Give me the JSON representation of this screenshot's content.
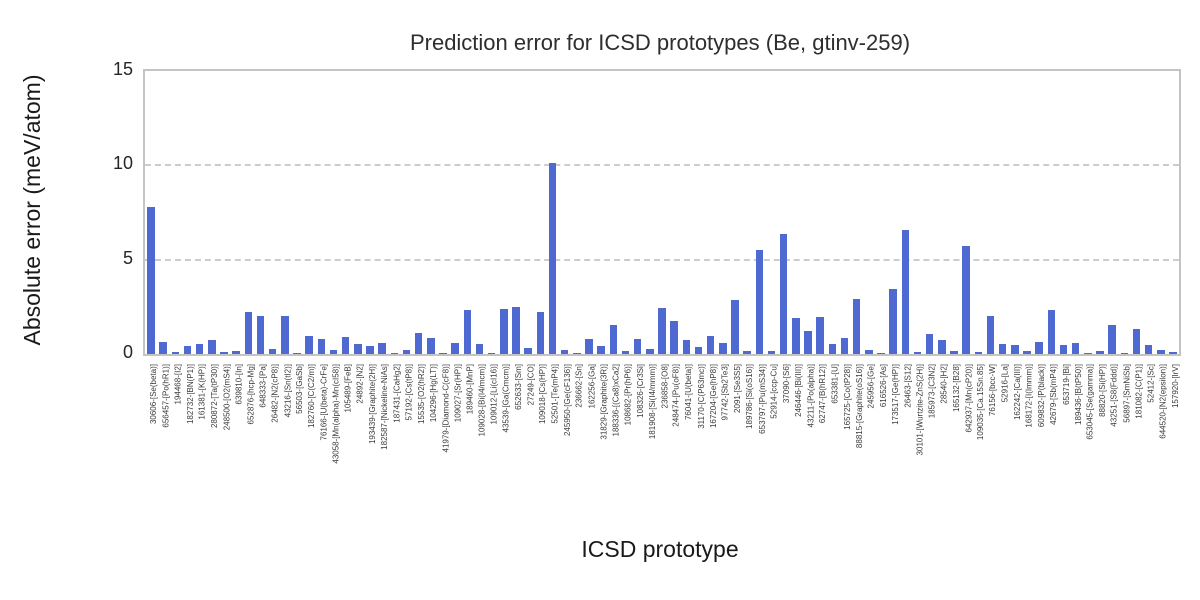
{
  "colors": {
    "bar": "#4e69d2",
    "grid": "#cccccc",
    "spine": "#c4c4c4",
    "title_text": "#2e2e2e",
    "tick_text": "#3a3a3a"
  },
  "chart_data": {
    "type": "bar",
    "title": "Prediction error for ICSD prototypes (Be, gtinv-259)",
    "xlabel": "ICSD prototype",
    "ylabel": "Absolute error (meV/atom)",
    "ylim": [
      0,
      15
    ],
    "yticks": [
      0,
      5,
      10,
      15
    ],
    "grid": "horizontal dashed gridlines at 5 and 10",
    "legend": null,
    "categories": [
      "30606-[Se(beta)]",
      "656457-[Po(hR1)]",
      "194468-[I2]",
      "182732-[BN(P1)]",
      "161381-[K(HP)]",
      "280872-[Ta(tP30)]",
      "248500-[O2(mS4)]",
      "639810-[In]",
      "652876-[hcp-Mg]",
      "648333-[Pa]",
      "26482-[N2(cP8)]",
      "43216-[Sn(tI2)]",
      "56503-[GaSb]",
      "182760-[C(C2/m)]",
      "76166-[U(beta)-CrFe]",
      "43058-[Mn(alpha)-Mn(cI58)]",
      "105489-[FeB]",
      "24892-[N2]",
      "193439-[Graphite(2H)]",
      "182587-[Nickeline-NiAs]",
      "187431-[CaHg2]",
      "57192-[Cs(tP8)]",
      "15535-[O2(hR2)]",
      "104296-[Hg(LT)]",
      "41979-[Diamond-C(cF8)]",
      "109027-[Sr(HP)]",
      "189460-[MnP]",
      "109028-[Bi(I4/mcm)]",
      "109012-[Li(cI16)]",
      "43539-[Ga(Cmcm)]",
      "652633-[Sm]",
      "27249-[CO]",
      "109018-[Cs(HP)]",
      "52501-[Te(mP4)]",
      "245950-[Ge(cF136)]",
      "236662-[Sn]",
      "162256-[Ga]",
      "31829-[Graphite(3R)]",
      "188336-[(Ca8)xCa2]",
      "108682-[Pr(hP6)]",
      "108326-[Cr3Si]",
      "181908-[Si(I4/mmm)]",
      "236858-[O8]",
      "248474-[Pu(oF8)]",
      "76041-[U(beta)]",
      "31170-[C(P63mc)]",
      "167204-[Ge(hP8)]",
      "97742-[Sb2Te3]",
      "2091-[Se3S5]",
      "189786-[Si(oS16)]",
      "653797-[Pu(mS34)]",
      "52914-[ccp-Cu]",
      "37090-[S6]",
      "246446-[Bi(III)]",
      "43211-[Po(alpha)]",
      "62747-[B(hR12)]",
      "653381-[U]",
      "165725-[Co(tP28)]",
      "88815-[Graphite(oS16)]",
      "245956-[Ge]",
      "616526-[As]",
      "173517-[Ge(HP)]",
      "26463-[S12]",
      "30101-[Wurtzite-ZnS(2H)]",
      "185973-[C3N2]",
      "28540-[H2]",
      "165132-[B28]",
      "642937-[Mn(cP20)]",
      "109035-[Ca.15Sn.85]",
      "76156-[bcc-W]",
      "52916-[La]",
      "162242-[Ca(III)]",
      "168172-[I(Immm)]",
      "609832-[P(black)]",
      "42679-[Sb(mP4)]",
      "653719-[Bi]",
      "189436-[B(tP50)]",
      "653045-[Se(gamma)]",
      "88820-[Si(HP)]",
      "43251-[S8(Fddd)]",
      "56897-[SmNiSb]",
      "181082-[C(P1)]",
      "52412-[Sc]",
      "644520-[N2(epsilon)]",
      "157920-[IrV]"
    ],
    "values": [
      7.8,
      0.62,
      0.12,
      0.41,
      0.53,
      0.74,
      0.12,
      0.17,
      2.24,
      2.02,
      0.24,
      2.01,
      0.03,
      0.97,
      0.79,
      0.19,
      0.92,
      0.53,
      0.41,
      0.59,
      0.05,
      0.2,
      1.09,
      0.83,
      0.05,
      0.59,
      2.33,
      0.52,
      0.03,
      2.38,
      2.5,
      0.31,
      2.21,
      10.15,
      0.19,
      0.03,
      0.79,
      0.41,
      1.52,
      0.14,
      0.79,
      0.26,
      2.45,
      1.73,
      0.73,
      0.37,
      0.96,
      0.58,
      2.85,
      0.14,
      5.5,
      0.14,
      6.35,
      1.92,
      1.23,
      1.95,
      0.52,
      0.83,
      2.9,
      0.2,
      0.05,
      3.47,
      6.55,
      0.08,
      1.04,
      0.76,
      0.15,
      5.72,
      0.1,
      2.02,
      0.54,
      0.48,
      0.14,
      0.62,
      2.33,
      0.48,
      0.59,
      0.02,
      0.14,
      1.55,
      0.02,
      1.3,
      0.48,
      0.19,
      0.1
    ]
  }
}
